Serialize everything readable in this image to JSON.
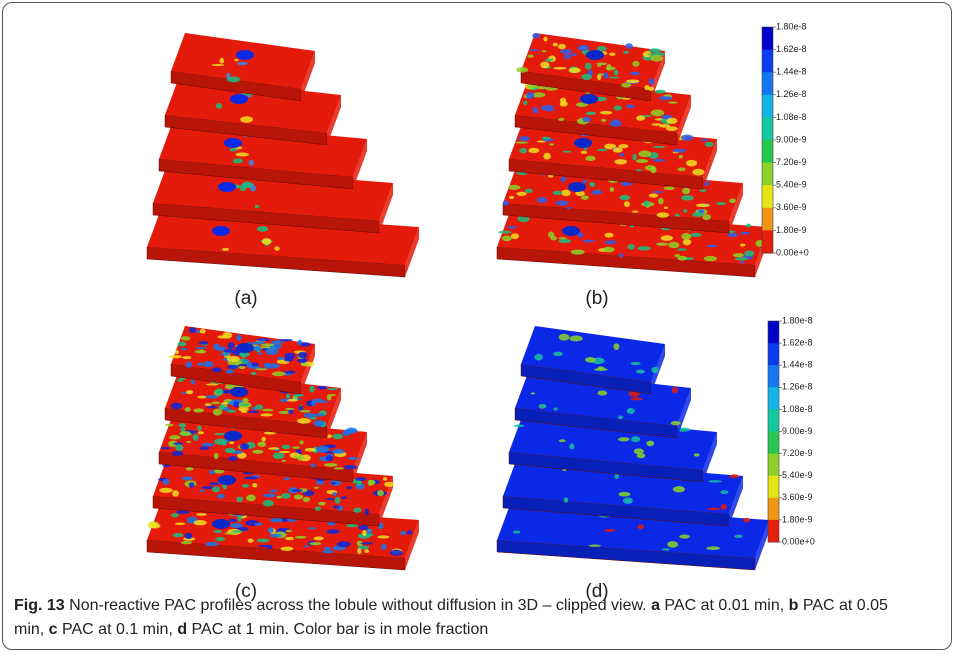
{
  "figure": {
    "panels": [
      {
        "label": "(a)"
      },
      {
        "label": "(b)"
      },
      {
        "label": "(c)"
      },
      {
        "label": "(d)"
      }
    ],
    "colorbars": [
      {
        "labels": [
          "1.80e-8",
          "1.62e-8",
          "1.44e-8",
          "1.26e-8",
          "1.08e-8",
          "9.00e-9",
          "7.20e-9",
          "5.40e-9",
          "3.60e-9",
          "1.80e-9",
          "0.00e+0"
        ]
      },
      {
        "labels": [
          "1.80e-8",
          "1.62e-8",
          "1.44e-8",
          "1.26e-8",
          "1.08e-8",
          "9.00e-9",
          "7.20e-9",
          "5.40e-9",
          "3.60e-9",
          "1.80e-9",
          "0.00e+0"
        ]
      }
    ],
    "caption": [
      {
        "text": "Fig. 13",
        "bold": true
      },
      {
        "text": " Non-reactive PAC profiles across the lobule without diffusion in 3D – clipped view. ",
        "bold": false
      },
      {
        "text": "a",
        "bold": true
      },
      {
        "text": " PAC at 0.01 min, ",
        "bold": false
      },
      {
        "text": "b",
        "bold": true
      },
      {
        "text": " PAC at 0.05 min, ",
        "bold": false
      },
      {
        "text": "c",
        "bold": true
      },
      {
        "text": " PAC at 0.1 min, ",
        "bold": false
      },
      {
        "text": "d",
        "bold": true
      },
      {
        "text": " PAC at 1 min. Color bar is in mole fraction",
        "bold": false
      }
    ]
  }
}
